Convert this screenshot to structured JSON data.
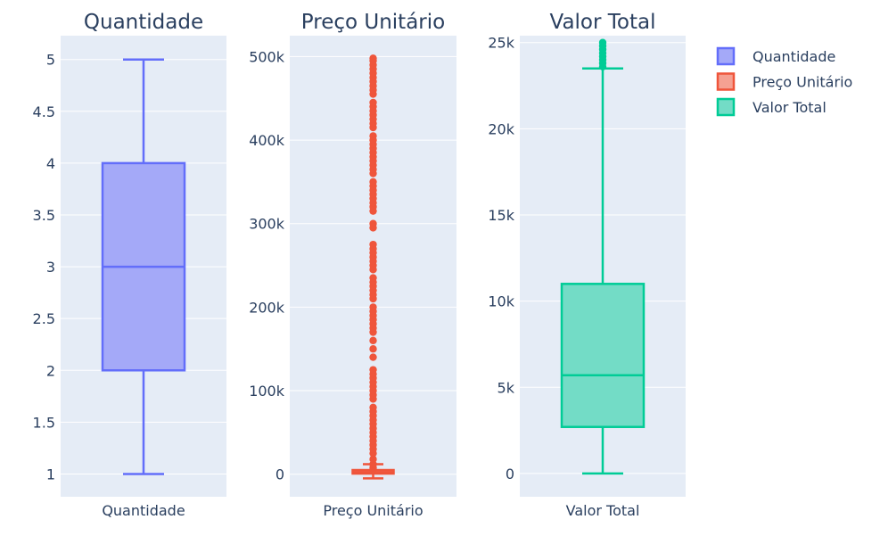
{
  "chart_data": [
    {
      "type": "box",
      "title": "Quantidade",
      "category": "Quantidade",
      "color": "#636efa",
      "fill": "#a4a9f8",
      "ylim": [
        0.78,
        5.23
      ],
      "yticks": [
        1,
        1.5,
        2,
        2.5,
        3,
        3.5,
        4,
        4.5,
        5
      ],
      "ytick_labels": [
        "1",
        "1.5",
        "2",
        "2.5",
        "3",
        "3.5",
        "4",
        "4.5",
        "5"
      ],
      "stats": {
        "min": 1,
        "q1": 2,
        "median": 3,
        "q3": 4,
        "max": 5
      },
      "outliers": []
    },
    {
      "type": "box",
      "title": "Preço Unitário",
      "category": "Preço Unitário",
      "color": "#ef553b",
      "fill": "#f5a192",
      "ylim": [
        -27000,
        525000
      ],
      "yticks": [
        0,
        100000,
        200000,
        300000,
        400000,
        500000
      ],
      "ytick_labels": [
        "0",
        "100k",
        "200k",
        "300k",
        "400k",
        "500k"
      ],
      "stats": {
        "min": -5000,
        "q1": 1000,
        "median": 2500,
        "q3": 5000,
        "max": 12000
      },
      "outliers": [
        6000,
        8000,
        12000,
        18000,
        25000,
        30000,
        35000,
        40000,
        45000,
        50000,
        55000,
        60000,
        65000,
        70000,
        75000,
        80000,
        90000,
        95000,
        100000,
        105000,
        110000,
        115000,
        120000,
        125000,
        140000,
        150000,
        160000,
        170000,
        175000,
        180000,
        185000,
        190000,
        195000,
        200000,
        210000,
        215000,
        220000,
        225000,
        230000,
        235000,
        245000,
        250000,
        255000,
        260000,
        265000,
        270000,
        275000,
        295000,
        300000,
        315000,
        320000,
        325000,
        330000,
        335000,
        340000,
        345000,
        350000,
        360000,
        365000,
        370000,
        375000,
        380000,
        385000,
        390000,
        395000,
        400000,
        405000,
        415000,
        420000,
        425000,
        430000,
        435000,
        440000,
        445000,
        455000,
        460000,
        465000,
        470000,
        475000,
        480000,
        485000,
        490000,
        495000,
        498000
      ]
    },
    {
      "type": "box",
      "title": "Valor Total",
      "category": "Valor Total",
      "color": "#00cc96",
      "fill": "#73dcc6",
      "ylim": [
        -1350,
        25400
      ],
      "yticks": [
        0,
        5000,
        10000,
        15000,
        20000,
        25000
      ],
      "ytick_labels": [
        "0",
        "5k",
        "10k",
        "15k",
        "20k",
        "25k"
      ],
      "stats": {
        "min": 0,
        "q1": 2700,
        "median": 5700,
        "q3": 11000,
        "max": 23500
      },
      "outliers": [
        23600,
        23800,
        24000,
        24200,
        24400,
        24600,
        24800,
        25000
      ]
    }
  ],
  "legend": {
    "placement": "top-right",
    "items": [
      {
        "label": "Quantidade",
        "color": "#636efa",
        "fill": "#a4a9f8"
      },
      {
        "label": "Preço Unitário",
        "color": "#ef553b",
        "fill": "#f5a192"
      },
      {
        "label": "Valor Total",
        "color": "#00cc96",
        "fill": "#73dcc6"
      }
    ]
  }
}
